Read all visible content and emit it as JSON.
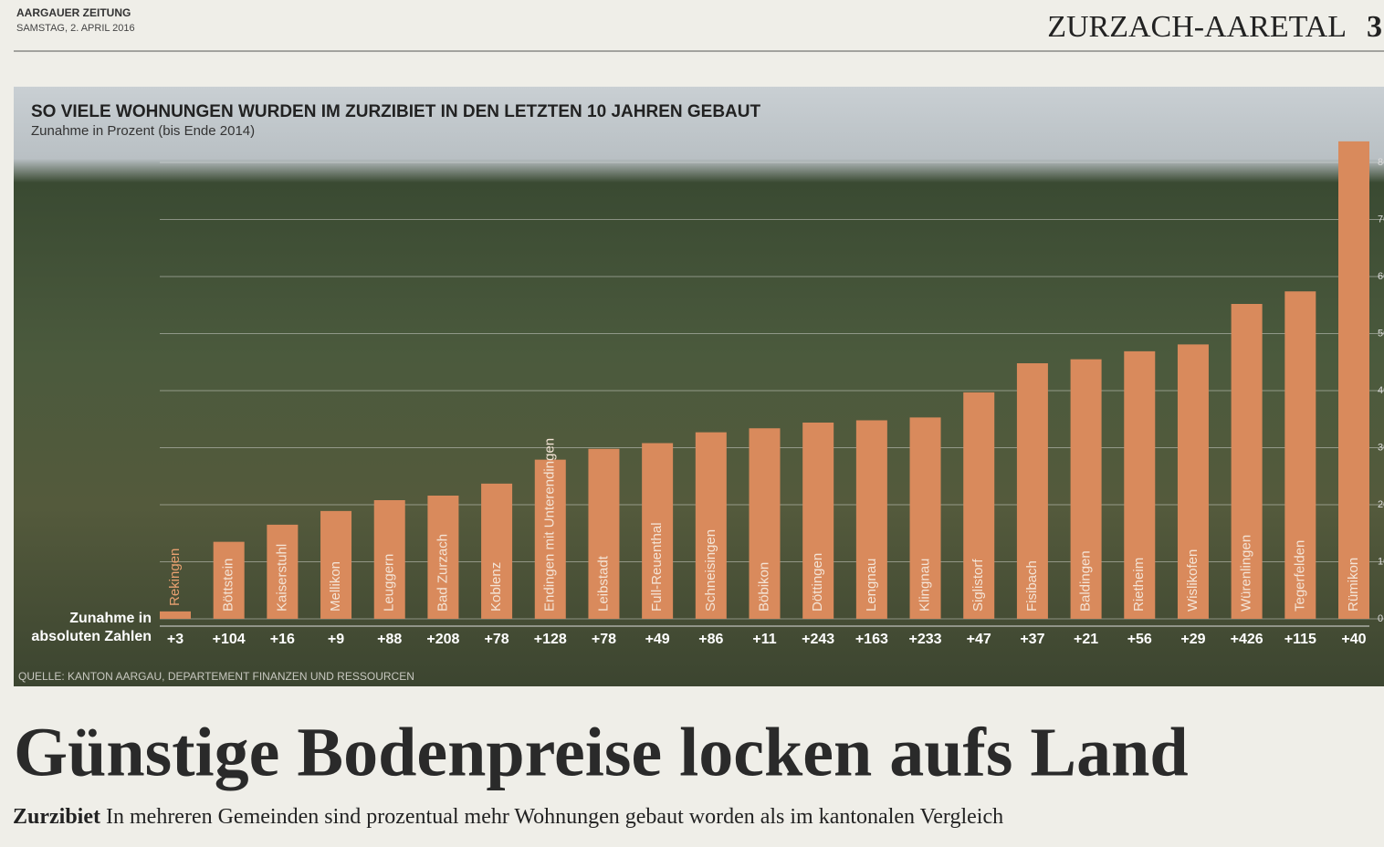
{
  "header": {
    "paper": "AARGAUER ZEITUNG",
    "date": "SAMSTAG, 2. APRIL 2016",
    "section": "ZURZACH-AARETAL",
    "page": "3"
  },
  "chart_data": {
    "type": "bar",
    "title": "SO VIELE WOHNUNGEN WURDEN IM ZURZIBIET IN DEN LETZTEN 10 JAHREN GEBAUT",
    "subtitle": "Zunahme in Prozent (bis Ende 2014)",
    "categories": [
      "Rekingen",
      "Böttstein",
      "Kaiserstuhl",
      "Mellikon",
      "Leuggern",
      "Bad Zurzach",
      "Koblenz",
      "Endingen mit Unterendingen",
      "Leibstadt",
      "Full-Reuenthal",
      "Schneisingen",
      "Böbikon",
      "Döttingen",
      "Lengnau",
      "Klingnau",
      "Siglistorf",
      "Fisibach",
      "Baldingen",
      "Rietheim",
      "Wislikofen",
      "Würenlingen",
      "Tegerfelden",
      "Rümikon"
    ],
    "values": [
      1.3,
      13.5,
      16.5,
      18.9,
      20.8,
      21.6,
      23.7,
      27.9,
      29.8,
      30.8,
      32.7,
      33.4,
      34.4,
      34.8,
      35.3,
      39.7,
      44.8,
      45.5,
      46.9,
      48.1,
      55.2,
      57.4,
      83.7
    ],
    "color": "#d98a5c",
    "absolute_title": [
      "Zunahme in",
      "absoluten Zahlen"
    ],
    "absolute_labels": [
      "+3",
      "+104",
      "+16",
      "+9",
      "+88",
      "+208",
      "+78",
      "+128",
      "+78",
      "+49",
      "+86",
      "+11",
      "+243",
      "+163",
      "+233",
      "+47",
      "+37",
      "+21",
      "+56",
      "+29",
      "+426",
      "+115",
      "+40"
    ],
    "ylim": [
      0,
      84
    ],
    "yticks": [
      0,
      10,
      20,
      30,
      40,
      50,
      60,
      70,
      80
    ],
    "grid": true,
    "source": "QUELLE: KANTON AARGAU, DEPARTEMENT FINANZEN UND RESSOURCEN"
  },
  "article": {
    "headline": "Günstige Bodenpreise locken aufs Land",
    "kicker": "Zurzibiet",
    "lead": "In mehreren Gemeinden sind prozentual mehr Wohnungen gebaut worden als im kantonalen Vergleich"
  }
}
